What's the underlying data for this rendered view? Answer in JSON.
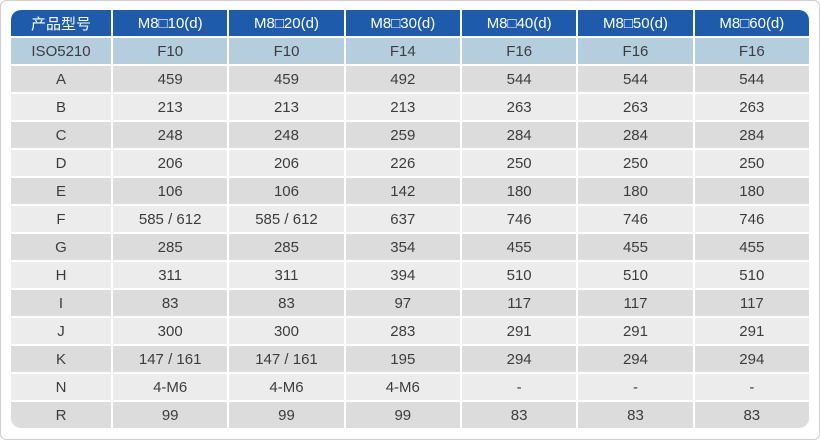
{
  "table": {
    "columns": [
      "产品型号",
      "M8□10(d)",
      "M8□20(d)",
      "M8□30(d)",
      "M8□40(d)",
      "M8□50(d)",
      "M8□60(d)"
    ],
    "rows": [
      {
        "label": "ISO5210",
        "variant": "highlight",
        "values": [
          "F10",
          "F10",
          "F14",
          "F16",
          "F16",
          "F16"
        ]
      },
      {
        "label": "A",
        "values": [
          "459",
          "459",
          "492",
          "544",
          "544",
          "544"
        ]
      },
      {
        "label": "B",
        "values": [
          "213",
          "213",
          "213",
          "263",
          "263",
          "263"
        ]
      },
      {
        "label": "C",
        "values": [
          "248",
          "248",
          "259",
          "284",
          "284",
          "284"
        ]
      },
      {
        "label": "D",
        "values": [
          "206",
          "206",
          "226",
          "250",
          "250",
          "250"
        ]
      },
      {
        "label": "E",
        "values": [
          "106",
          "106",
          "142",
          "180",
          "180",
          "180"
        ]
      },
      {
        "label": "F",
        "values": [
          "585 / 612",
          "585 / 612",
          "637",
          "746",
          "746",
          "746"
        ]
      },
      {
        "label": "G",
        "values": [
          "285",
          "285",
          "354",
          "455",
          "455",
          "455"
        ]
      },
      {
        "label": "H",
        "values": [
          "311",
          "311",
          "394",
          "510",
          "510",
          "510"
        ]
      },
      {
        "label": "I",
        "values": [
          "83",
          "83",
          "97",
          "117",
          "117",
          "117"
        ]
      },
      {
        "label": "J",
        "values": [
          "300",
          "300",
          "283",
          "291",
          "291",
          "291"
        ]
      },
      {
        "label": "K",
        "values": [
          "147 / 161",
          "147 / 161",
          "195",
          "294",
          "294",
          "294"
        ]
      },
      {
        "label": "N",
        "values": [
          "4-M6",
          "4-M6",
          "4-M6",
          "-",
          "-",
          "-"
        ]
      },
      {
        "label": "R",
        "values": [
          "99",
          "99",
          "99",
          "83",
          "83",
          "83"
        ]
      }
    ],
    "colors": {
      "header_bg": "#1e5cab",
      "header_text": "#ffffff",
      "iso_row_bg": "#b5cede",
      "row_dark_bg": "#dcdcdc",
      "row_light_bg": "#ececec",
      "cell_text": "#3d3d3d",
      "frame_border": "#cfcfcf"
    }
  }
}
